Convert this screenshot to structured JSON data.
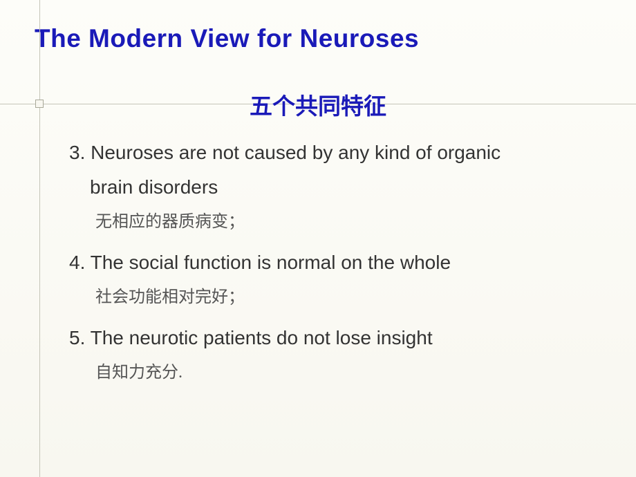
{
  "slide": {
    "title": "The Modern View for Neuroses",
    "subtitle": "五个共同特征",
    "items": [
      {
        "en_line1": "3. Neuroses are not caused by any kind of organic",
        "en_line2": "brain disorders",
        "cn": "无相应的器质病变；"
      },
      {
        "en_line1": "4. The social function is normal on the whole",
        "en_line2": "",
        "cn": "社会功能相对完好；"
      },
      {
        "en_line1": "5. The neurotic patients do not lose insight",
        "en_line2": "",
        "cn": "自知力充分."
      }
    ],
    "colors": {
      "title_color": "#1a1ab8",
      "text_color": "#333333",
      "cn_text_color": "#555555",
      "background_top": "#fdfdf9",
      "background_bottom": "#f8f7f0",
      "line_color": "#c5c5b8"
    },
    "typography": {
      "title_fontsize": 37,
      "subtitle_fontsize": 33,
      "body_en_fontsize": 28,
      "body_cn_fontsize": 24
    }
  }
}
